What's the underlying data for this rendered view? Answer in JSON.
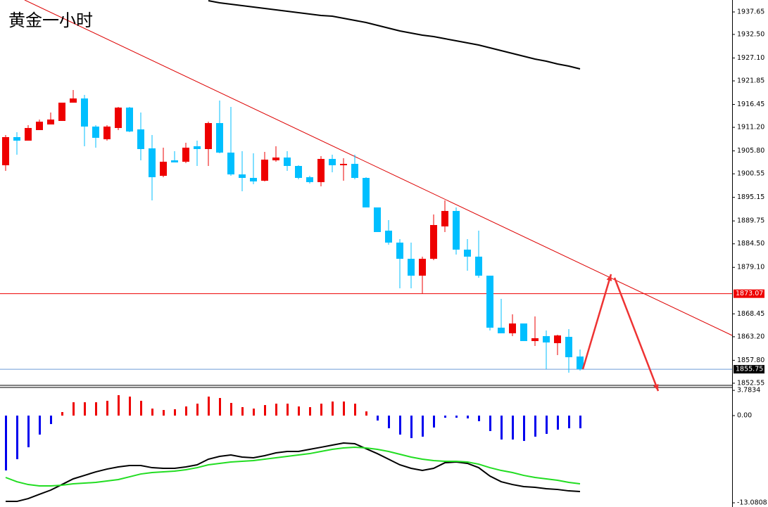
{
  "chart_data": [
    {
      "type": "candlestick",
      "title": "黄金一小时",
      "title_color": "#e8332a",
      "ylim": [
        1852.06,
        1940.39
      ],
      "yticks": [
        1937.65,
        {
          "value": 1932.5,
          "label": "1932.50"
        },
        {
          "value": 1927.1,
          "label": "1927.10"
        },
        1921.85,
        1916.45,
        {
          "value": 1911.2,
          "label": "1911.20"
        },
        {
          "value": 1905.8,
          "label": "1905.80"
        },
        1900.55,
        1895.15,
        1889.75,
        {
          "value": 1884.5,
          "label": "1884.50"
        },
        {
          "value": 1879.1,
          "label": "1879.10"
        },
        1868.45,
        {
          "value": 1863.2,
          "label": "1863.20"
        },
        {
          "value": 1857.8,
          "label": "1857.80"
        },
        1852.55
      ],
      "up_color": "#ee0000",
      "down_color": "#00bfff",
      "open": [
        1902.51,
        1908.96,
        1908.15,
        1910.57,
        1911.86,
        1912.67,
        1916.86,
        1917.82,
        1911.38,
        1908.47,
        1911.05,
        1915.73,
        1910.73,
        1906.38,
        1900.09,
        1903.64,
        1903.32,
        1906.86,
        1906.22,
        1912.18,
        1905.41,
        1900.41,
        1899.61,
        1898.96,
        1903.64,
        1904.28,
        1902.35,
        1899.77,
        1898.64,
        1903.96,
        1902.51,
        1902.83,
        1899.61,
        1892.84,
        1887.52,
        1884.78,
        1881.07,
        1877.2,
        1881.07,
        1888.49,
        1892.03,
        1883.17,
        1881.56,
        1877.2,
        1865.28,
        1863.99,
        1866.24,
        1862.21,
        1863.34,
        1861.73,
        1863.18,
        1858.67
      ],
      "high": [
        1909.44,
        1910.09,
        1911.7,
        1912.99,
        1914.6,
        1916.86,
        1919.76,
        1918.63,
        1911.7,
        1911.7,
        1915.89,
        1915.89,
        1914.6,
        1909.44,
        1906.54,
        1905.73,
        1907.67,
        1908.15,
        1912.5,
        1917.34,
        1915.89,
        1905.73,
        1905.25,
        1905.57,
        1906.86,
        1905.73,
        1902.51,
        1900.09,
        1904.61,
        1904.93,
        1904.12,
        1904.93,
        1899.77,
        1892.84,
        1889.94,
        1885.59,
        1884.78,
        1881.56,
        1891.23,
        1894.45,
        1892.84,
        1885.59,
        1887.52,
        1877.2,
        1871.88,
        1868.34,
        1866.24,
        1867.85,
        1864.63,
        1863.66,
        1864.95,
        1860.28
      ],
      "low": [
        1901.22,
        1904.93,
        1908.15,
        1910.57,
        1911.86,
        1912.67,
        1916.86,
        1906.86,
        1906.54,
        1908.15,
        1910.57,
        1910.09,
        1903.64,
        1894.45,
        1899.77,
        1903.16,
        1902.99,
        1902.35,
        1902.35,
        1905.25,
        1900.09,
        1896.55,
        1898.16,
        1898.8,
        1903.32,
        1901.22,
        1899.29,
        1898.32,
        1897.67,
        1900.9,
        1898.96,
        1899.29,
        1892.84,
        1887.2,
        1884.3,
        1874.3,
        1874.3,
        1873.01,
        1880.75,
        1887.2,
        1882.04,
        1878.33,
        1876.72,
        1864.63,
        1863.99,
        1863.34,
        1862.21,
        1861.08,
        1855.77,
        1858.99,
        1854.96,
        1855.44
      ],
      "close": [
        1908.96,
        1908.15,
        1911.05,
        1912.5,
        1912.99,
        1916.86,
        1917.82,
        1911.38,
        1908.8,
        1911.38,
        1915.73,
        1910.25,
        1906.22,
        1899.77,
        1903.32,
        1903.16,
        1906.54,
        1906.22,
        1912.18,
        1905.41,
        1900.41,
        1899.61,
        1898.8,
        1903.8,
        1904.28,
        1902.35,
        1899.61,
        1898.64,
        1903.96,
        1902.51,
        1902.83,
        1899.61,
        1892.84,
        1887.2,
        1884.78,
        1881.07,
        1877.2,
        1881.07,
        1888.81,
        1892.03,
        1883.17,
        1881.56,
        1877.2,
        1865.28,
        1863.99,
        1866.24,
        1862.21,
        1862.86,
        1861.89,
        1863.5,
        1858.51,
        1855.77
      ],
      "series": [
        {
          "color": "#000000",
          "values": [
            null,
            null,
            null,
            null,
            null,
            null,
            null,
            null,
            null,
            null,
            null,
            null,
            null,
            null,
            null,
            null,
            null,
            null,
            1940.23,
            1939.75,
            1939.42,
            1939.1,
            1938.78,
            1938.46,
            1938.13,
            1937.81,
            1937.49,
            1937.17,
            1936.84,
            1936.68,
            1936.2,
            1935.72,
            1935.23,
            1934.59,
            1933.94,
            1933.3,
            1932.81,
            1932.33,
            1932.01,
            1931.52,
            1931.04,
            1930.56,
            1930.07,
            1929.43,
            1928.78,
            1928.14,
            1927.49,
            1926.85,
            1926.37,
            1925.72,
            1925.24,
            1924.59
          ]
        }
      ],
      "levels": [
        {
          "value": 1873.07,
          "color": "#ee0000"
        },
        {
          "value": 1855.75,
          "color": "#6d9bd6"
        }
      ]
    },
    {
      "type": "macd",
      "ylim": [
        -13.71,
        4.22
      ],
      "yticks": [
        3.7834,
        {
          "value": 0,
          "label": "0.00"
        },
        -13.0808
      ],
      "pos_color": "#ee0000",
      "neg_color": "#0000ee",
      "values": [
        -8.23,
        -6.54,
        -4.75,
        -2.85,
        -1.27,
        0.53,
        2.0,
        2.0,
        2.0,
        2.22,
        3.06,
        2.85,
        2.22,
        1.05,
        0.84,
        0.95,
        1.37,
        1.79,
        2.85,
        2.64,
        1.9,
        1.27,
        1.05,
        1.58,
        1.79,
        1.79,
        1.37,
        1.27,
        1.79,
        2.11,
        2.11,
        1.79,
        0.63,
        -0.74,
        -1.9,
        -2.85,
        -3.38,
        -3.16,
        -1.79,
        -0.32,
        -0.32,
        -0.42,
        -0.84,
        -2.32,
        -3.59,
        -3.59,
        -3.8,
        -3.16,
        -2.74,
        -2.11,
        -1.9,
        -1.9
      ],
      "series": [
        {
          "color": "#000000",
          "values": [
            -12.87,
            -12.87,
            -12.45,
            -11.81,
            -11.18,
            -10.34,
            -9.49,
            -8.97,
            -8.44,
            -8.02,
            -7.7,
            -7.49,
            -7.49,
            -7.81,
            -7.91,
            -7.91,
            -7.7,
            -7.38,
            -6.54,
            -6.12,
            -5.91,
            -6.22,
            -6.33,
            -6.01,
            -5.59,
            -5.38,
            -5.38,
            -5.06,
            -4.75,
            -4.43,
            -4.11,
            -4.22,
            -4.96,
            -5.7,
            -6.54,
            -7.38,
            -7.91,
            -8.23,
            -7.91,
            -7.07,
            -6.96,
            -7.17,
            -7.81,
            -9.07,
            -9.92,
            -10.34,
            -10.65,
            -10.76,
            -10.97,
            -11.08,
            -11.29,
            -11.39
          ]
        },
        {
          "color": "#22dd22",
          "values": [
            -9.28,
            -9.92,
            -10.34,
            -10.55,
            -10.55,
            -10.44,
            -10.23,
            -10.13,
            -10.02,
            -9.81,
            -9.6,
            -9.18,
            -8.76,
            -8.54,
            -8.44,
            -8.33,
            -8.12,
            -7.81,
            -7.38,
            -7.17,
            -6.96,
            -6.86,
            -6.75,
            -6.54,
            -6.33,
            -6.12,
            -5.91,
            -5.7,
            -5.38,
            -5.06,
            -4.85,
            -4.75,
            -4.85,
            -5.06,
            -5.38,
            -5.8,
            -6.22,
            -6.54,
            -6.75,
            -6.86,
            -6.86,
            -6.96,
            -7.28,
            -7.81,
            -8.23,
            -8.54,
            -8.97,
            -9.28,
            -9.49,
            -9.7,
            -10.02,
            -10.23
          ]
        }
      ]
    }
  ]
}
